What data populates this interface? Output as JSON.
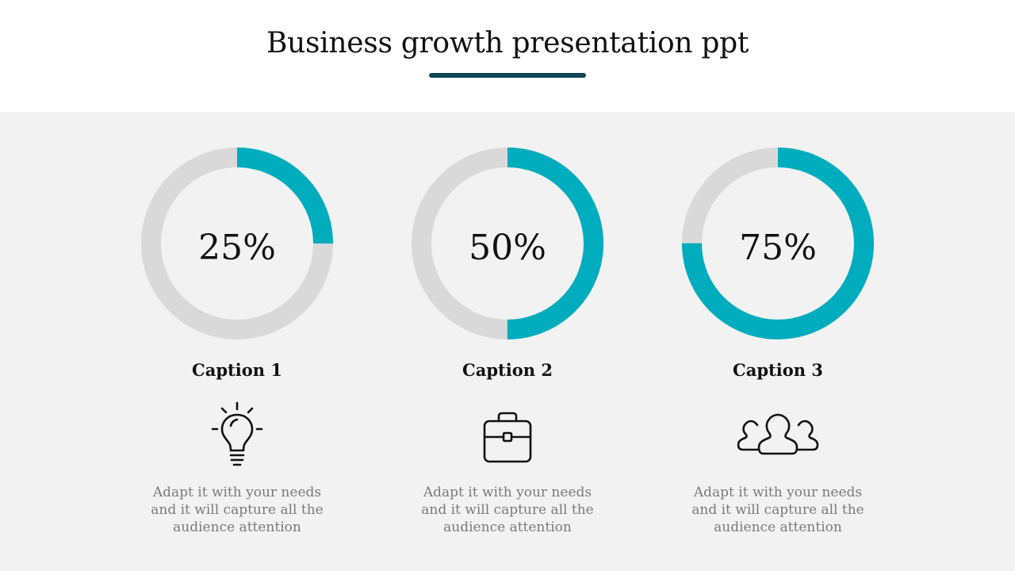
{
  "slide": {
    "title": "Business growth presentation ppt"
  },
  "colors": {
    "accent": "#00adbf",
    "track": "#d9d9d9",
    "underline": "#0d4556",
    "panel": "#f2f2f2"
  },
  "items": [
    {
      "value_label": "25%",
      "fraction": 0.25,
      "caption": "Caption 1",
      "icon": "lightbulb-icon",
      "description": "Adapt it with your needs and it will capture all the audience attention"
    },
    {
      "value_label": "50%",
      "fraction": 0.5,
      "caption": "Caption 2",
      "icon": "briefcase-icon",
      "description": "Adapt it with your needs and it will capture all the audience attention"
    },
    {
      "value_label": "75%",
      "fraction": 0.75,
      "caption": "Caption 3",
      "icon": "group-icon",
      "description": "Adapt it with your needs and it will capture all the audience attention"
    }
  ]
}
